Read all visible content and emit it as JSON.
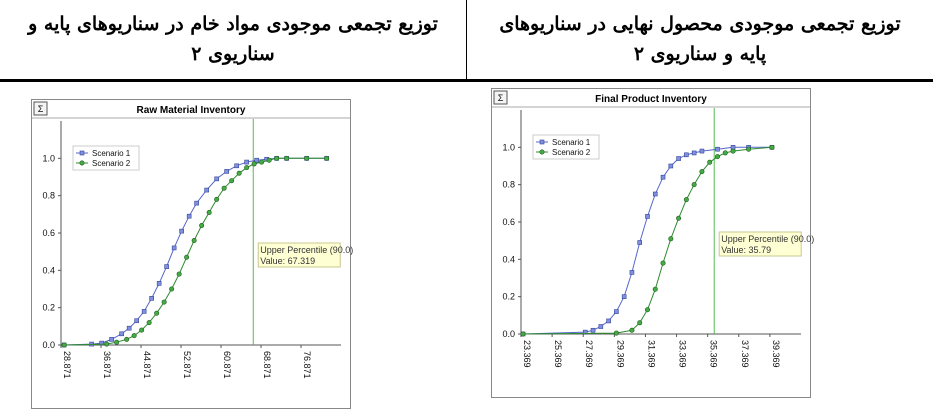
{
  "headers": {
    "left": {
      "line1": "توزیع تجمعی موجودی مواد خام در سناریوهای پایه و",
      "line2": "سناریوی ۲"
    },
    "right": {
      "line1": "توزیع تجمعی موجودی محصول نهایی در سناریوهای",
      "line2": "پایه و سناریوی ۲"
    }
  },
  "sigma_label": "Σ",
  "colors": {
    "scenario1": "#5566cc",
    "scenario2": "#2e8b2e",
    "percentile_line": "#55bb55",
    "note_bg": "#ffffd4"
  },
  "chart_data": [
    {
      "type": "line",
      "title": "Raw Material Inventory",
      "xlabel": "",
      "ylabel": "",
      "ylim": [
        0,
        1.2
      ],
      "y_ticks": [
        "0.0",
        "0.2",
        "0.4",
        "0.6",
        "0.8",
        "1.0"
      ],
      "x_ticks": [
        "28.871",
        "36.871",
        "44.871",
        "52.871",
        "60.871",
        "68.871",
        "76.871"
      ],
      "xlim": [
        28.871,
        84.871
      ],
      "legend": {
        "position": "top-left",
        "entries": [
          "Scenario 1",
          "Scenario 2"
        ]
      },
      "annotation": {
        "label": "Upper Percentile (90.0)",
        "value_text": "Value: 67.319",
        "x": 67.319
      },
      "series": [
        {
          "name": "Scenario 1",
          "x": [
            29.5,
            35,
            37,
            39,
            41,
            42.5,
            44,
            45.5,
            47,
            48.5,
            50,
            51.5,
            53,
            54.5,
            56,
            58,
            60,
            62,
            64,
            66,
            68,
            70,
            72,
            74,
            78,
            82
          ],
          "y": [
            0,
            0.005,
            0.01,
            0.03,
            0.06,
            0.09,
            0.13,
            0.18,
            0.25,
            0.33,
            0.42,
            0.52,
            0.61,
            0.69,
            0.76,
            0.83,
            0.89,
            0.93,
            0.96,
            0.98,
            0.99,
            0.995,
            1,
            1,
            1,
            1
          ]
        },
        {
          "name": "Scenario 2",
          "x": [
            29.5,
            38,
            40,
            42,
            43.5,
            45,
            46.5,
            48,
            49.5,
            51,
            52.5,
            54,
            55.5,
            57,
            58.5,
            60,
            61.5,
            63,
            64.5,
            66,
            67.5,
            69,
            70.5,
            72,
            74,
            78,
            82
          ],
          "y": [
            0,
            0.005,
            0.015,
            0.03,
            0.05,
            0.08,
            0.12,
            0.17,
            0.23,
            0.3,
            0.38,
            0.47,
            0.56,
            0.64,
            0.71,
            0.78,
            0.84,
            0.88,
            0.92,
            0.95,
            0.97,
            0.98,
            0.99,
            1,
            1,
            1,
            1
          ]
        }
      ]
    },
    {
      "type": "line",
      "title": "Final Product Inventory",
      "xlabel": "",
      "ylabel": "",
      "ylim": [
        0,
        1.2
      ],
      "y_ticks": [
        "0.0",
        "0.2",
        "0.4",
        "0.6",
        "0.8",
        "1.0"
      ],
      "x_ticks": [
        "23.369",
        "25.369",
        "27.369",
        "29.369",
        "31.369",
        "33.369",
        "35.369",
        "37.369",
        "39.369"
      ],
      "xlim": [
        23.369,
        41.369
      ],
      "legend": {
        "position": "top-left",
        "entries": [
          "Scenario 1",
          "Scenario 2"
        ]
      },
      "annotation": {
        "label": "Upper Percentile (90.0)",
        "value_text": "Value: 35.79",
        "x": 35.79
      },
      "series": [
        {
          "name": "Scenario 1",
          "x": [
            23.5,
            27.5,
            28,
            28.5,
            29,
            29.5,
            30,
            30.5,
            31,
            31.5,
            32,
            32.5,
            33,
            33.5,
            34,
            34.5,
            35,
            36,
            37,
            38,
            39.5
          ],
          "y": [
            0,
            0.01,
            0.02,
            0.04,
            0.07,
            0.12,
            0.2,
            0.33,
            0.49,
            0.63,
            0.75,
            0.84,
            0.9,
            0.94,
            0.96,
            0.97,
            0.98,
            0.99,
            1,
            1,
            1
          ]
        },
        {
          "name": "Scenario 2",
          "x": [
            23.5,
            29.5,
            30.5,
            31,
            31.5,
            32,
            32.5,
            33,
            33.5,
            34,
            34.5,
            35,
            35.5,
            36,
            36.5,
            37,
            38,
            39.5
          ],
          "y": [
            0,
            0.005,
            0.02,
            0.06,
            0.13,
            0.24,
            0.38,
            0.51,
            0.62,
            0.72,
            0.8,
            0.87,
            0.92,
            0.95,
            0.97,
            0.98,
            0.99,
            1
          ]
        }
      ]
    }
  ]
}
